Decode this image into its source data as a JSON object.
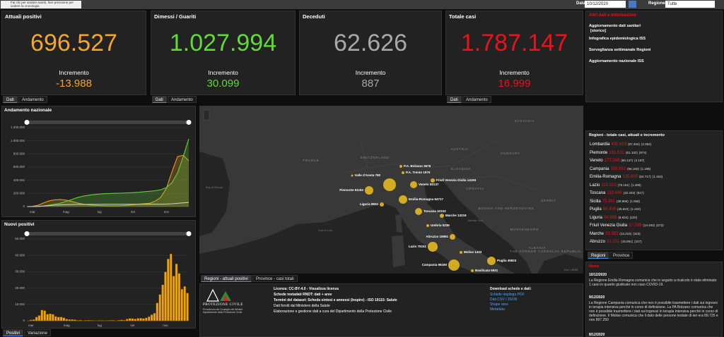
{
  "topbar": {
    "tooltip": "Fai clic per andare avanti, fare pressione per vedere la cronologia",
    "date_label": "Data",
    "date": "10/12/2020",
    "region_label": "Regione",
    "region": "Tutte"
  },
  "kpis": [
    {
      "title": "Attuali positivi",
      "value": "696.527",
      "increment_label": "Incremento",
      "increment": "-13.988",
      "color": "#f5a52a",
      "tabs": [
        "Dati",
        "Andamento"
      ]
    },
    {
      "title": "Dimessi / Guariti",
      "value": "1.027.994",
      "increment_label": "Incremento",
      "increment": "30.099",
      "color": "#5fdc34",
      "tabs": [
        "Dati",
        "Andamento"
      ]
    },
    {
      "title": "Deceduti",
      "value": "62.626",
      "increment_label": "Incremento",
      "increment": "887",
      "color": "#a8a8a8",
      "tabs": []
    },
    {
      "title": "Totale casi",
      "value": "1.787.147",
      "increment_label": "Incremento",
      "increment": "16.999",
      "color": "#e8141c",
      "tabs": [
        "Dati",
        "Andamento"
      ]
    }
  ],
  "links": {
    "title": "Altri dati e informazioni",
    "items": [
      "Aggiornamento dati sanitari",
      "Infografica epidemiologica ISS",
      "Sorveglianza settimanale Regioni",
      "Aggiornamento nazionale ISS"
    ],
    "storico": "[storico]"
  },
  "national_chart": {
    "type": "line",
    "title": "Andamento nazionale",
    "categories": [
      null,
      "mar",
      null,
      null,
      null,
      null,
      null,
      "mag",
      null,
      null,
      null,
      null,
      null,
      "lug",
      null,
      null,
      null,
      null,
      null,
      "set",
      null,
      null,
      null,
      null,
      null,
      "nov",
      null,
      null,
      null,
      null
    ],
    "series": [
      {
        "color": "#e89a1a",
        "values": [
          200,
          3000,
          20000,
          57000,
          88000,
          103000,
          106000,
          99000,
          78000,
          56000,
          39000,
          28000,
          19000,
          15000,
          13000,
          12000,
          12000,
          14000,
          19000,
          27000,
          36000,
          44000,
          50000,
          82000,
          142000,
          279000,
          532000,
          761000,
          779000,
          696527
        ]
      },
      {
        "color": "#5fd13a",
        "values": [
          1,
          600,
          2300,
          9000,
          22000,
          35000,
          51000,
          79000,
          106000,
          136000,
          158000,
          173000,
          183000,
          191000,
          196000,
          199000,
          202000,
          205000,
          209000,
          212000,
          218000,
          226000,
          233000,
          241000,
          257000,
          289000,
          363000,
          512000,
          757000,
          1027994
        ]
      },
      {
        "color": "#c8c8c8",
        "values": [
          7,
          148,
          1809,
          7503,
          15362,
          21067,
          25969,
          29079,
          31368,
          32735,
          33530,
          34223,
          34657,
          34818,
          34967,
          35092,
          35154,
          35225,
          35437,
          35491,
          35603,
          35758,
          35918,
          36205,
          36832,
          38618,
          42330,
          49261,
          57045,
          62626
        ]
      }
    ],
    "ylim": [
      0,
      1200000
    ],
    "yticks": [
      0,
      {
        "value": 200000,
        "label": "200.000"
      },
      {
        "value": 400000,
        "label": "400.000"
      },
      {
        "value": 600000,
        "label": "600.000"
      },
      {
        "value": 800000,
        "label": "800.000"
      },
      {
        "value": 1000000,
        "label": "1.000.000"
      },
      {
        "value": 1200000,
        "label": "1.200.000"
      }
    ],
    "grid": true
  },
  "new_cases_chart": {
    "type": "bar",
    "title": "Nuovi positivi",
    "color": "#f0a30a",
    "categories": [
      null,
      "mar",
      null,
      null,
      null,
      null,
      null,
      null,
      null,
      null,
      null,
      null,
      null,
      null,
      "mag",
      null,
      null,
      null,
      null,
      null,
      null,
      null,
      null,
      null,
      null,
      null,
      "lug",
      null,
      null,
      null,
      null,
      null,
      null,
      null,
      null,
      null,
      null,
      null,
      "set",
      null,
      null,
      null,
      null,
      null,
      null,
      null,
      null,
      null,
      null,
      null,
      "nov",
      null,
      null,
      null,
      null,
      null,
      null,
      null,
      null
    ],
    "values": [
      50,
      570,
      780,
      2300,
      3230,
      6560,
      6200,
      4050,
      4300,
      3950,
      2670,
      2250,
      2350,
      1870,
      1070,
      800,
      790,
      660,
      300,
      420,
      180,
      280,
      340,
      250,
      190,
      130,
      240,
      230,
      160,
      220,
      270,
      290,
      160,
      350,
      520,
      400,
      1070,
      1460,
      1330,
      1100,
      1500,
      1580,
      1390,
      1770,
      2500,
      3680,
      4620,
      10930,
      16080,
      21990,
      29900,
      37800,
      40900,
      27350,
      34770,
      29000,
      19350,
      21050,
      16999
    ],
    "ylim": [
      0,
      50000
    ],
    "yticks": [
      0,
      {
        "value": 10000,
        "label": "10.000"
      },
      {
        "value": 20000,
        "label": "20.000"
      },
      {
        "value": 30000,
        "label": "30.000"
      },
      {
        "value": 40000,
        "label": "40.000"
      },
      {
        "value": 50000,
        "label": "50.000"
      }
    ],
    "grid": true
  },
  "chart_tabs": [
    "Positivi",
    "Variazione"
  ],
  "map": {
    "places": [
      "FRANCE",
      "SWITZERLAND",
      "AUSTRIA",
      "SLOVENIA",
      "HUNGARY",
      "SLOVAKIA",
      "CROATIA",
      "BOSNIA AND HERZEGOVINA",
      "SERBIA",
      "MONTENEGRO",
      "ALBANIA",
      "THE FORMER YUGOSLAV REPUBLIC OF MACEDONIA",
      "Bay of Biscay",
      "Gulf of Lion",
      "Adriatic Sea",
      "Esri, HERE"
    ],
    "points": [
      "P.A. Bolzano 3678",
      "P.A. Trento 1975",
      "Friuli Venezia Giulia 14193",
      "Valle d'Aosta 780",
      "Piemonte 61162",
      "Veneto 80137",
      "Emilia-Romagna 64717",
      "Liguria 8934",
      "Toscana 32333",
      "Marche 13219",
      "Umbria 5236",
      "Abruzzo 15991",
      "Lazio 76151",
      "Molise 1433",
      "Campania 96160",
      "Puglia 45823",
      "Basilicata 5931"
    ],
    "tabs": [
      "Regioni - attuali positivi",
      "Province - casi totali"
    ]
  },
  "footer": {
    "logo": "PROTEZIONE CIVILE",
    "logo_sub": "Presidenza del Consiglio dei Ministri Dipartimento della Protezione Civile",
    "lines": [
      "Licenza: CC-BY-4.0 - Visualizza licenza",
      "Schede metadati RNDT: dati + aree",
      "Termini del dataset: Scheda sintesi e annessi (Inspire) - ISO 19115: Salute",
      "Dati forniti dal Ministero della Salute",
      "Elaborazione e gestione dati a cura del Dipartimento della Protezione Civile"
    ],
    "download_title": "Download schede e dati:",
    "downloads": [
      "Schede riepilogo PDF",
      "Dati CSV / JSON",
      "Shape aree",
      "Metadata"
    ]
  },
  "regions": {
    "title": "Regioni - totale casi, attuali e incremento",
    "rows": [
      {
        "name": "Lombardia",
        "total": "435.653",
        "active": "(87.263)",
        "increment": "(2.092)"
      },
      {
        "name": "Piemonte",
        "total": "181.531",
        "active": "(61.162)",
        "increment": "(974)"
      },
      {
        "name": "Veneto",
        "total": "177.568",
        "active": "(80.137)",
        "increment": "(4.197)"
      },
      {
        "name": "Campania",
        "total": "169.992",
        "active": "(96.160)",
        "increment": "(1.198)"
      },
      {
        "name": "Emilia-Romagna",
        "total": "135.805",
        "active": "(64.717)",
        "increment": "(1.453)"
      },
      {
        "name": "Lazio",
        "total": "115.915",
        "active": "(76.151)",
        "increment": "(1.498)"
      },
      {
        "name": "Toscana",
        "total": "110.448",
        "active": "(32.333)",
        "increment": "(517)"
      },
      {
        "name": "Sicilia",
        "total": "75.361",
        "active": "(39.969)",
        "increment": "(1.059)"
      },
      {
        "name": "Puglia",
        "total": "68.306",
        "active": "(45.823)",
        "increment": "(1.222)"
      },
      {
        "name": "Liguria",
        "total": "54.689",
        "active": "(8.934)",
        "increment": "(220)"
      },
      {
        "name": "Friuli Venezia Giulia",
        "total": "37.789",
        "active": "(14.193)",
        "increment": "(672)"
      },
      {
        "name": "Marche",
        "total": "33.383",
        "active": "(13.219)",
        "increment": "(323)"
      },
      {
        "name": "Abruzzo",
        "total": "31.251",
        "active": "(15.991)",
        "increment": "(227)"
      }
    ],
    "tabs": [
      "Regioni",
      "Province"
    ]
  },
  "news": {
    "title": "News",
    "items": [
      {
        "date": "10/12/2020",
        "text": "La Regione Emilia Romagna comunica che in seguito a ricalcolo è stato eliminato 1 caso in quanto giudicato non caso COVID-19."
      },
      {
        "date": "9/12/2020",
        "text": "La Regione Campania comunica che non è possibile trasmettere i dati sui ingressi in terapia intensiva perché in corso di definizione. La PA Bolzano comunica che non è possibile trasmettere i dati sui ingressi in terapia intensiva perché in corso di definizione. Il Molise comunica che il dato delle persone testate di ieri era 89.725 e non 897.250"
      },
      {
        "date": "8/12/2020",
        "text": ""
      }
    ]
  }
}
